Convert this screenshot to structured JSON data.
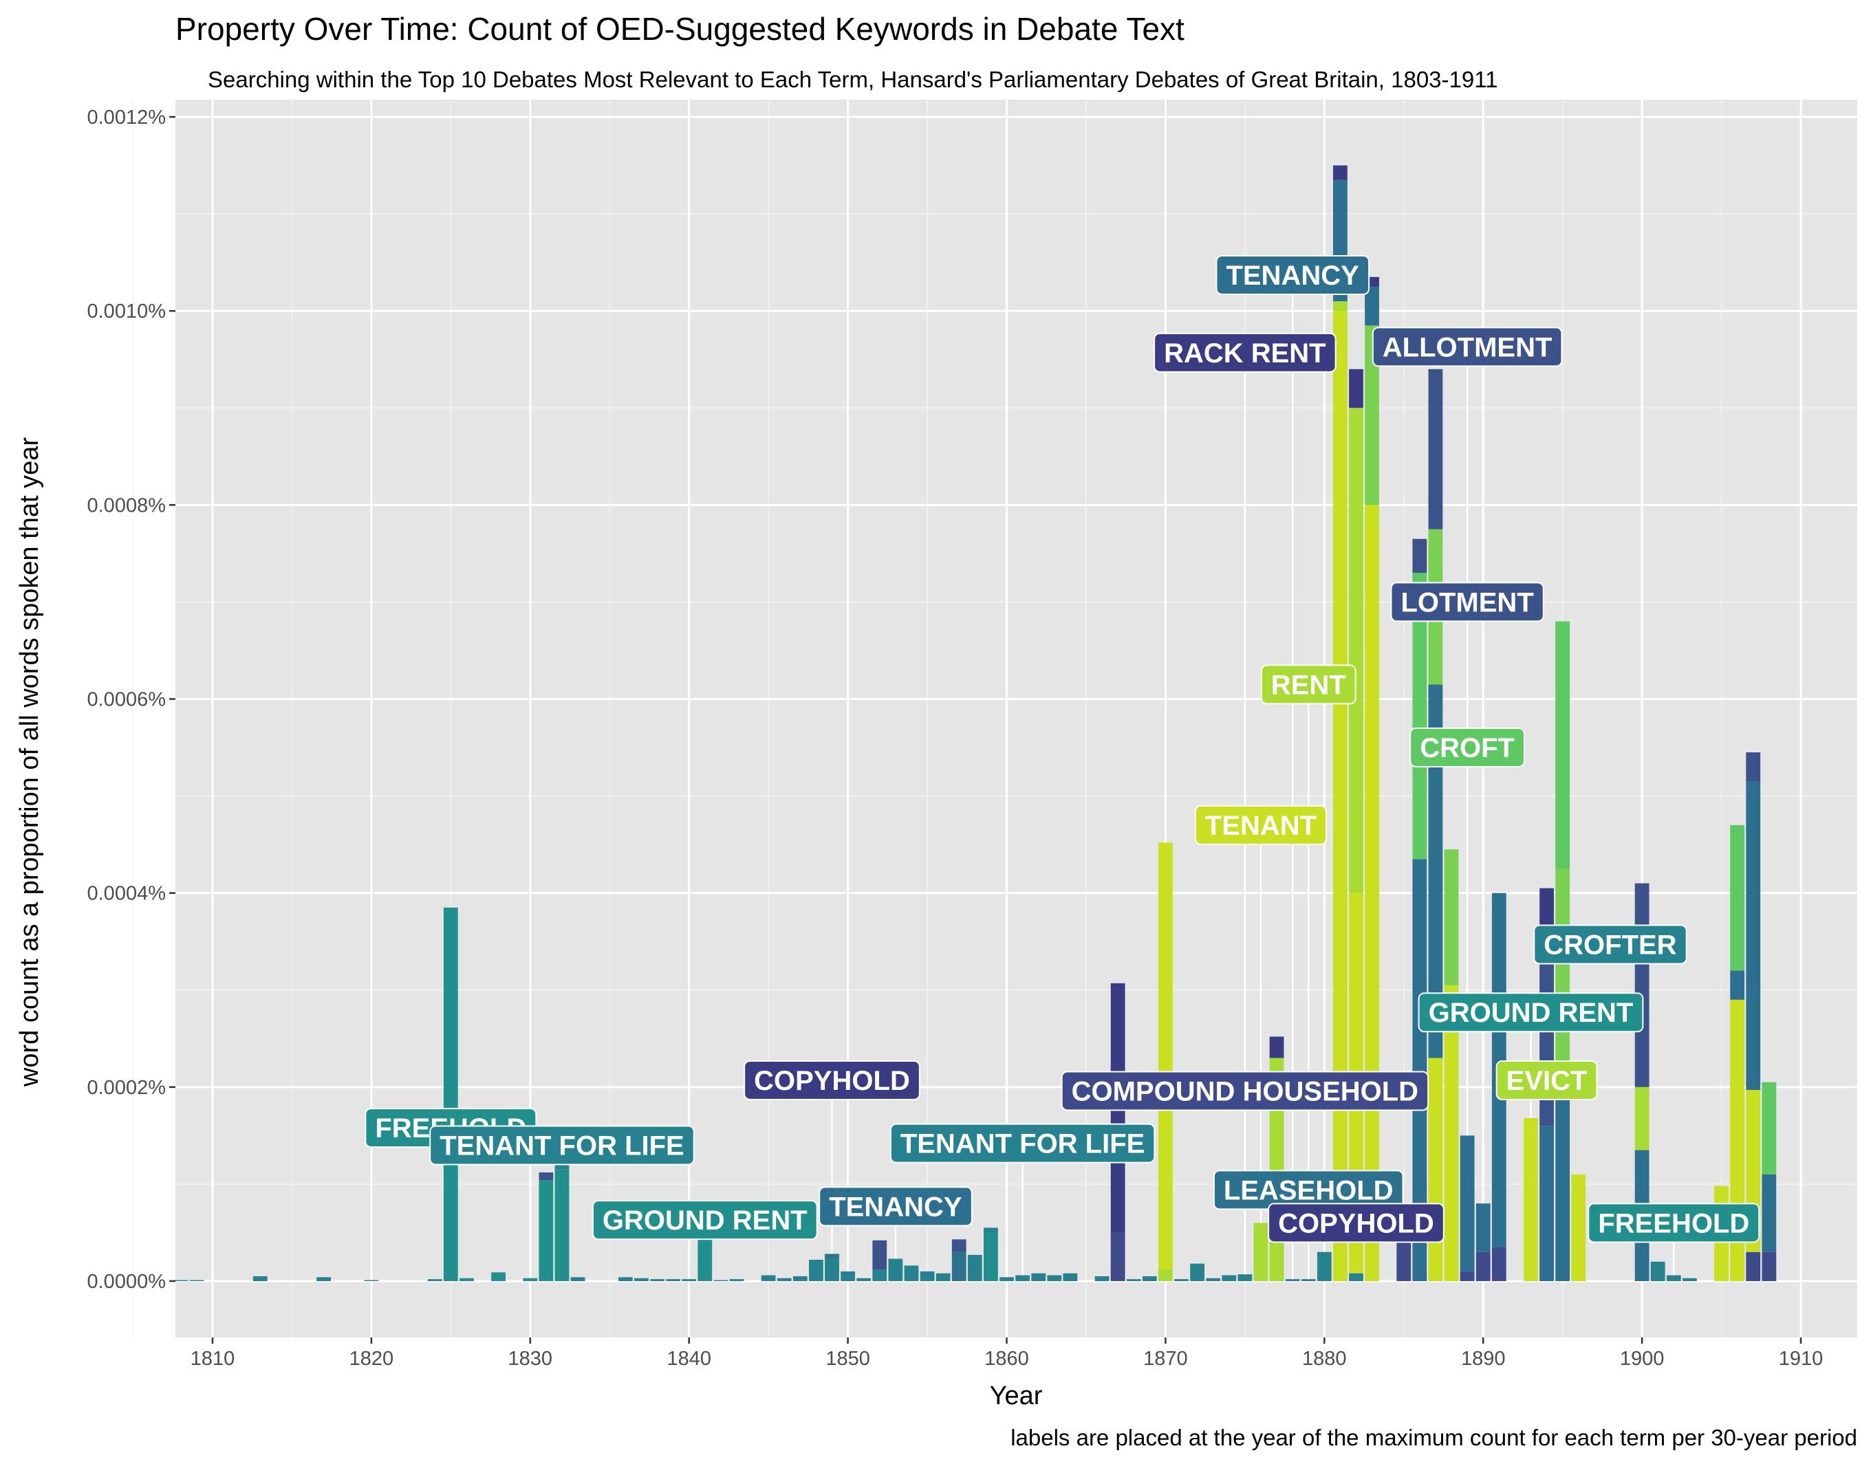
{
  "chart_data": {
    "type": "bar",
    "stacked": true,
    "title": "Property Over Time: Count of OED-Suggested Keywords in Debate Text",
    "subtitle": "Searching within the Top 10 Debates Most Relevant to Each Term, Hansard's Parliamentary Debates of Great Britain, 1803-1911",
    "xlabel": "Year",
    "ylabel": "word count as a proportion of all words spoken that year",
    "caption": "labels are placed at the year of the maximum count for each term per 30-year period",
    "xlim": [
      1805,
      1911
    ],
    "ylim": [
      0,
      0.0012
    ],
    "x_ticks": [
      {
        "v": 1810,
        "label": "1810"
      },
      {
        "v": 1820,
        "label": "1820"
      },
      {
        "v": 1830,
        "label": "1830"
      },
      {
        "v": 1840,
        "label": "1840"
      },
      {
        "v": 1850,
        "label": "1850"
      },
      {
        "v": 1860,
        "label": "1860"
      },
      {
        "v": 1870,
        "label": "1870"
      },
      {
        "v": 1880,
        "label": "1880"
      },
      {
        "v": 1890,
        "label": "1890"
      },
      {
        "v": 1900,
        "label": "1900"
      },
      {
        "v": 1910,
        "label": "1910"
      }
    ],
    "y_ticks": [
      {
        "v": 0,
        "label": "0.0000%"
      },
      {
        "v": 0.0002,
        "label": "0.0002%"
      },
      {
        "v": 0.0004,
        "label": "0.0004%"
      },
      {
        "v": 0.0006,
        "label": "0.0006%"
      },
      {
        "v": 0.0008,
        "label": "0.0008%"
      },
      {
        "v": 0.001,
        "label": "0.0010%"
      },
      {
        "v": 0.0012,
        "label": "0.0012%"
      }
    ],
    "grid": true,
    "legend": "none",
    "background": "#e5e5e5",
    "bars": [
      {
        "year": 1808,
        "segments": [
          {
            "value": 1e-06,
            "color": "#26828e"
          }
        ]
      },
      {
        "year": 1809,
        "segments": [
          {
            "value": 1e-06,
            "color": "#26828e"
          }
        ]
      },
      {
        "year": 1813,
        "segments": [
          {
            "value": 5e-06,
            "color": "#26828e"
          }
        ]
      },
      {
        "year": 1817,
        "segments": [
          {
            "value": 4e-06,
            "color": "#26828e"
          }
        ]
      },
      {
        "year": 1820,
        "segments": [
          {
            "value": 1e-06,
            "color": "#26828e"
          }
        ]
      },
      {
        "year": 1824,
        "segments": [
          {
            "value": 2e-06,
            "color": "#26828e"
          }
        ]
      },
      {
        "year": 1825,
        "segments": [
          {
            "value": 0.000385,
            "color": "#21908d"
          }
        ]
      },
      {
        "year": 1826,
        "segments": [
          {
            "value": 3e-06,
            "color": "#21908d"
          }
        ]
      },
      {
        "year": 1828,
        "segments": [
          {
            "value": 9e-06,
            "color": "#21908d"
          }
        ]
      },
      {
        "year": 1830,
        "segments": [
          {
            "value": 3e-06,
            "color": "#21908d"
          }
        ]
      },
      {
        "year": 1831,
        "segments": [
          {
            "value": 0.000104,
            "color": "#21908d"
          },
          {
            "value": 8e-06,
            "color": "#3b528b"
          }
        ]
      },
      {
        "year": 1832,
        "segments": [
          {
            "value": 0.000115,
            "color": "#21908d"
          },
          {
            "value": 2.5e-05,
            "color": "#26828e"
          }
        ]
      },
      {
        "year": 1833,
        "segments": [
          {
            "value": 4e-06,
            "color": "#26828e"
          }
        ]
      },
      {
        "year": 1836,
        "segments": [
          {
            "value": 4e-06,
            "color": "#26828e"
          }
        ]
      },
      {
        "year": 1837,
        "segments": [
          {
            "value": 3e-06,
            "color": "#26828e"
          }
        ]
      },
      {
        "year": 1838,
        "segments": [
          {
            "value": 2e-06,
            "color": "#26828e"
          }
        ]
      },
      {
        "year": 1839,
        "segments": [
          {
            "value": 2e-06,
            "color": "#26828e"
          }
        ]
      },
      {
        "year": 1840,
        "segments": [
          {
            "value": 2e-06,
            "color": "#26828e"
          }
        ]
      },
      {
        "year": 1841,
        "segments": [
          {
            "value": 4.3e-05,
            "color": "#21908d"
          }
        ]
      },
      {
        "year": 1842,
        "segments": [
          {
            "value": 1e-06,
            "color": "#26828e"
          }
        ]
      },
      {
        "year": 1843,
        "segments": [
          {
            "value": 2e-06,
            "color": "#26828e"
          }
        ]
      },
      {
        "year": 1845,
        "segments": [
          {
            "value": 6e-06,
            "color": "#26828e"
          }
        ]
      },
      {
        "year": 1846,
        "segments": [
          {
            "value": 3e-06,
            "color": "#26828e"
          }
        ]
      },
      {
        "year": 1847,
        "segments": [
          {
            "value": 5e-06,
            "color": "#26828e"
          }
        ]
      },
      {
        "year": 1848,
        "segments": [
          {
            "value": 2.2e-05,
            "color": "#26828e"
          }
        ]
      },
      {
        "year": 1849,
        "segments": [
          {
            "value": 2.3e-05,
            "color": "#26828e"
          },
          {
            "value": 5e-06,
            "color": "#2c728e"
          }
        ]
      },
      {
        "year": 1850,
        "segments": [
          {
            "value": 1e-05,
            "color": "#26828e"
          }
        ]
      },
      {
        "year": 1851,
        "segments": [
          {
            "value": 3e-06,
            "color": "#26828e"
          }
        ]
      },
      {
        "year": 1852,
        "segments": [
          {
            "value": 1.2e-05,
            "color": "#26828e"
          },
          {
            "value": 3e-05,
            "color": "#3b528b"
          }
        ]
      },
      {
        "year": 1853,
        "segments": [
          {
            "value": 2.3e-05,
            "color": "#26828e"
          }
        ]
      },
      {
        "year": 1854,
        "segments": [
          {
            "value": 1.6e-05,
            "color": "#26828e"
          }
        ]
      },
      {
        "year": 1855,
        "segments": [
          {
            "value": 1e-05,
            "color": "#26828e"
          }
        ]
      },
      {
        "year": 1856,
        "segments": [
          {
            "value": 8e-06,
            "color": "#26828e"
          }
        ]
      },
      {
        "year": 1857,
        "segments": [
          {
            "value": 3e-05,
            "color": "#2c728e"
          },
          {
            "value": 1.3e-05,
            "color": "#3b528b"
          }
        ]
      },
      {
        "year": 1858,
        "segments": [
          {
            "value": 2.7e-05,
            "color": "#26828e"
          }
        ]
      },
      {
        "year": 1859,
        "segments": [
          {
            "value": 5e-05,
            "color": "#21908d"
          },
          {
            "value": 5e-06,
            "color": "#26828e"
          }
        ]
      },
      {
        "year": 1860,
        "segments": [
          {
            "value": 4e-06,
            "color": "#26828e"
          }
        ]
      },
      {
        "year": 1861,
        "segments": [
          {
            "value": 6e-06,
            "color": "#26828e"
          }
        ]
      },
      {
        "year": 1862,
        "segments": [
          {
            "value": 8e-06,
            "color": "#26828e"
          }
        ]
      },
      {
        "year": 1863,
        "segments": [
          {
            "value": 6e-06,
            "color": "#26828e"
          }
        ]
      },
      {
        "year": 1864,
        "segments": [
          {
            "value": 8e-06,
            "color": "#26828e"
          }
        ]
      },
      {
        "year": 1866,
        "segments": [
          {
            "value": 5e-06,
            "color": "#26828e"
          }
        ]
      },
      {
        "year": 1867,
        "segments": [
          {
            "value": 5e-05,
            "color": "#3e4a89"
          },
          {
            "value": 0.000257,
            "color": "#3b3b84"
          }
        ]
      },
      {
        "year": 1868,
        "segments": [
          {
            "value": 2e-06,
            "color": "#26828e"
          }
        ]
      },
      {
        "year": 1869,
        "segments": [
          {
            "value": 5e-06,
            "color": "#26828e"
          }
        ]
      },
      {
        "year": 1870,
        "segments": [
          {
            "value": 1.2e-05,
            "color": "#a8db34"
          },
          {
            "value": 0.00044,
            "color": "#c8e020"
          }
        ]
      },
      {
        "year": 1871,
        "segments": [
          {
            "value": 2e-06,
            "color": "#26828e"
          }
        ]
      },
      {
        "year": 1872,
        "segments": [
          {
            "value": 1.8e-05,
            "color": "#26828e"
          }
        ]
      },
      {
        "year": 1873,
        "segments": [
          {
            "value": 3e-06,
            "color": "#26828e"
          }
        ]
      },
      {
        "year": 1874,
        "segments": [
          {
            "value": 6e-06,
            "color": "#26828e"
          }
        ]
      },
      {
        "year": 1875,
        "segments": [
          {
            "value": 7e-06,
            "color": "#26828e"
          }
        ]
      },
      {
        "year": 1876,
        "segments": [
          {
            "value": 6e-05,
            "color": "#a8db34"
          }
        ]
      },
      {
        "year": 1877,
        "segments": [
          {
            "value": 0.00023,
            "color": "#a8db34"
          },
          {
            "value": 2.2e-05,
            "color": "#3b3b84"
          }
        ]
      },
      {
        "year": 1878,
        "segments": [
          {
            "value": 2e-06,
            "color": "#26828e"
          }
        ]
      },
      {
        "year": 1879,
        "segments": [
          {
            "value": 2e-06,
            "color": "#26828e"
          }
        ]
      },
      {
        "year": 1880,
        "segments": [
          {
            "value": 3e-05,
            "color": "#26828e"
          }
        ]
      },
      {
        "year": 1881,
        "segments": [
          {
            "value": 0.001,
            "color": "#c8e020"
          },
          {
            "value": 1e-05,
            "color": "#a8db34"
          },
          {
            "value": 0.000125,
            "color": "#2d6f8e"
          },
          {
            "value": 1.5e-05,
            "color": "#3b3b84"
          }
        ]
      },
      {
        "year": 1882,
        "segments": [
          {
            "value": 8e-06,
            "color": "#26828e"
          },
          {
            "value": 0.000392,
            "color": "#c8e020"
          },
          {
            "value": 0.0005,
            "color": "#a8db34"
          },
          {
            "value": 4e-05,
            "color": "#3b3b84"
          }
        ]
      },
      {
        "year": 1883,
        "segments": [
          {
            "value": 0.0008,
            "color": "#c8e020"
          },
          {
            "value": 0.000185,
            "color": "#7ad151"
          },
          {
            "value": 4e-05,
            "color": "#2d6f8e"
          },
          {
            "value": 1e-05,
            "color": "#3b3b84"
          }
        ]
      },
      {
        "year": 1885,
        "segments": [
          {
            "value": 4e-05,
            "color": "#3e4a89"
          }
        ]
      },
      {
        "year": 1886,
        "segments": [
          {
            "value": 0.000435,
            "color": "#2d6f8e"
          },
          {
            "value": 0.000295,
            "color": "#5ec962"
          },
          {
            "value": 3.5e-05,
            "color": "#3b528b"
          }
        ]
      },
      {
        "year": 1887,
        "segments": [
          {
            "value": 0.00023,
            "color": "#c8e020"
          },
          {
            "value": 0.000385,
            "color": "#2d6f8e"
          },
          {
            "value": 0.00016,
            "color": "#7ad151"
          },
          {
            "value": 0.000165,
            "color": "#3b528b"
          }
        ]
      },
      {
        "year": 1888,
        "segments": [
          {
            "value": 0.000305,
            "color": "#c8e020"
          },
          {
            "value": 0.00014,
            "color": "#7ad151"
          }
        ]
      },
      {
        "year": 1889,
        "segments": [
          {
            "value": 1e-05,
            "color": "#3e4a89"
          },
          {
            "value": 0.00014,
            "color": "#2d6f8e"
          }
        ]
      },
      {
        "year": 1890,
        "segments": [
          {
            "value": 3e-05,
            "color": "#3e4a89"
          },
          {
            "value": 5e-05,
            "color": "#2d6f8e"
          }
        ]
      },
      {
        "year": 1891,
        "segments": [
          {
            "value": 3.5e-05,
            "color": "#3e4a89"
          },
          {
            "value": 0.000365,
            "color": "#2d6f8e"
          }
        ]
      },
      {
        "year": 1893,
        "segments": [
          {
            "value": 0.000168,
            "color": "#c8e020"
          }
        ]
      },
      {
        "year": 1894,
        "segments": [
          {
            "value": 0.00016,
            "color": "#2d6f8e"
          },
          {
            "value": 0.00017,
            "color": "#3b528b"
          },
          {
            "value": 7.5e-05,
            "color": "#3b3b84"
          }
        ]
      },
      {
        "year": 1895,
        "segments": [
          {
            "value": 0.000195,
            "color": "#2d6f8e"
          },
          {
            "value": 0.00023,
            "color": "#7ad151"
          },
          {
            "value": 0.000255,
            "color": "#5ec962"
          }
        ]
      },
      {
        "year": 1896,
        "segments": [
          {
            "value": 0.00011,
            "color": "#c8e020"
          }
        ]
      },
      {
        "year": 1900,
        "segments": [
          {
            "value": 0.000135,
            "color": "#2d6f8e"
          },
          {
            "value": 6.5e-05,
            "color": "#a8db34"
          },
          {
            "value": 0.00021,
            "color": "#3b528b"
          }
        ]
      },
      {
        "year": 1901,
        "segments": [
          {
            "value": 2e-05,
            "color": "#26828e"
          }
        ]
      },
      {
        "year": 1902,
        "segments": [
          {
            "value": 6e-06,
            "color": "#26828e"
          }
        ]
      },
      {
        "year": 1903,
        "segments": [
          {
            "value": 3e-06,
            "color": "#26828e"
          }
        ]
      },
      {
        "year": 1905,
        "segments": [
          {
            "value": 9.8e-05,
            "color": "#c8e020"
          }
        ]
      },
      {
        "year": 1906,
        "segments": [
          {
            "value": 0.00029,
            "color": "#c8e020"
          },
          {
            "value": 3e-05,
            "color": "#2d6f8e"
          },
          {
            "value": 0.00015,
            "color": "#5ec962"
          }
        ]
      },
      {
        "year": 1907,
        "segments": [
          {
            "value": 3e-05,
            "color": "#3e4a89"
          },
          {
            "value": 0.000167,
            "color": "#c8e020"
          },
          {
            "value": 0.000318,
            "color": "#2d6f8e"
          },
          {
            "value": 3e-05,
            "color": "#3b528b"
          }
        ]
      },
      {
        "year": 1908,
        "segments": [
          {
            "value": 3e-05,
            "color": "#3e4a89"
          },
          {
            "value": 8e-05,
            "color": "#2d6f8e"
          },
          {
            "value": 9.5e-05,
            "color": "#5ec962"
          }
        ]
      }
    ],
    "labels": [
      {
        "text": "FREEHOLD",
        "year": 1825,
        "y": 0.000158,
        "color": "#21908d"
      },
      {
        "text": "TENANT FOR LIFE",
        "year": 1832,
        "y": 0.00014,
        "color": "#26828e"
      },
      {
        "text": "GROUND RENT",
        "year": 1841,
        "y": 6.3e-05,
        "color": "#21908d"
      },
      {
        "text": "COPYHOLD",
        "year": 1849,
        "y": 0.000207,
        "color": "#3b3b84"
      },
      {
        "text": "TENANCY",
        "year": 1853,
        "y": 7.7e-05,
        "color": "#2d6f8e"
      },
      {
        "text": "TENANT FOR LIFE",
        "year": 1861,
        "y": 0.000142,
        "color": "#26828e"
      },
      {
        "text": "COMPOUND HOUSEHOLD",
        "year": 1875,
        "y": 0.000196,
        "color": "#3e4a89"
      },
      {
        "text": "LEASEHOLD",
        "year": 1879,
        "y": 9.4e-05,
        "color": "#2c728e"
      },
      {
        "text": "COPYHOLD",
        "year": 1882,
        "y": 6e-05,
        "color": "#3b3b84"
      },
      {
        "text": "TENANCY",
        "year": 1878,
        "y": 0.001037,
        "color": "#2d6f8e"
      },
      {
        "text": "RACK RENT",
        "year": 1875,
        "y": 0.000957,
        "color": "#3b3b84"
      },
      {
        "text": "ALLOTMENT",
        "year": 1889,
        "y": 0.000963,
        "color": "#3b528b"
      },
      {
        "text": "LOTMENT",
        "year": 1889,
        "y": 0.0007,
        "color": "#3b528b"
      },
      {
        "text": "RENT",
        "year": 1879,
        "y": 0.000615,
        "color": "#a8db34"
      },
      {
        "text": "CROFT",
        "year": 1889,
        "y": 0.00055,
        "color": "#5ec962"
      },
      {
        "text": "TENANT",
        "year": 1876,
        "y": 0.00047,
        "color": "#c8e020"
      },
      {
        "text": "CROFTER",
        "year": 1898,
        "y": 0.000347,
        "color": "#26828e"
      },
      {
        "text": "GROUND RENT",
        "year": 1893,
        "y": 0.000277,
        "color": "#21908d"
      },
      {
        "text": "EVICT",
        "year": 1894,
        "y": 0.000207,
        "color": "#a8db34"
      },
      {
        "text": "FREEHOLD",
        "year": 1902,
        "y": 6e-05,
        "color": "#21908d"
      }
    ]
  }
}
